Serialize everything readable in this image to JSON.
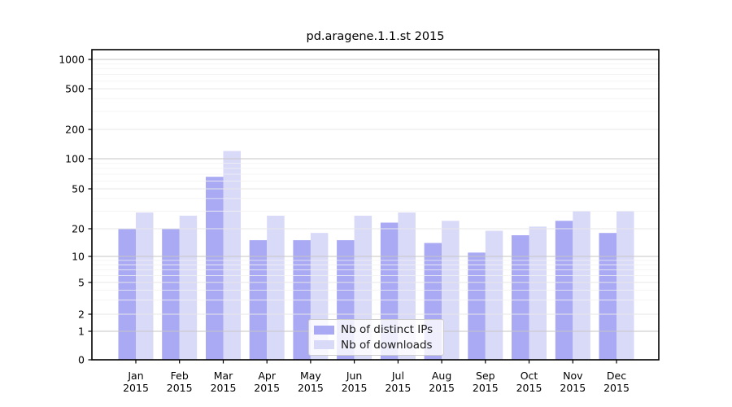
{
  "chart_data": {
    "type": "bar",
    "title": "pd.aragene.1.1.st 2015",
    "categories": [
      "Jan",
      "Feb",
      "Mar",
      "Apr",
      "May",
      "Jun",
      "Jul",
      "Aug",
      "Sep",
      "Oct",
      "Nov",
      "Dec"
    ],
    "x_year_label": "2015",
    "series": [
      {
        "name": "Nb of distinct IPs",
        "color": "#a9a9f4",
        "values": [
          20,
          20,
          66,
          15,
          15,
          15,
          23,
          14,
          11,
          17,
          24,
          18
        ]
      },
      {
        "name": "Nb of downloads",
        "color": "#d9d9f8",
        "values": [
          29,
          27,
          120,
          27,
          18,
          27,
          29,
          24,
          19,
          21,
          30,
          30
        ]
      }
    ],
    "y_axis": {
      "ticks": [
        0,
        1,
        2,
        5,
        10,
        20,
        50,
        100,
        200,
        500,
        1000
      ],
      "scale": "log-like with zero baseline",
      "ylim": [
        0,
        1500
      ]
    },
    "legend_position": "lower center",
    "grid": true
  },
  "colors": {
    "grid_major": "#c6c6c6",
    "grid_mid": "#e7e7e7",
    "grid_minor": "#f2f2f2",
    "frame": "#000000",
    "text": "#000000",
    "background": "#ffffff"
  }
}
